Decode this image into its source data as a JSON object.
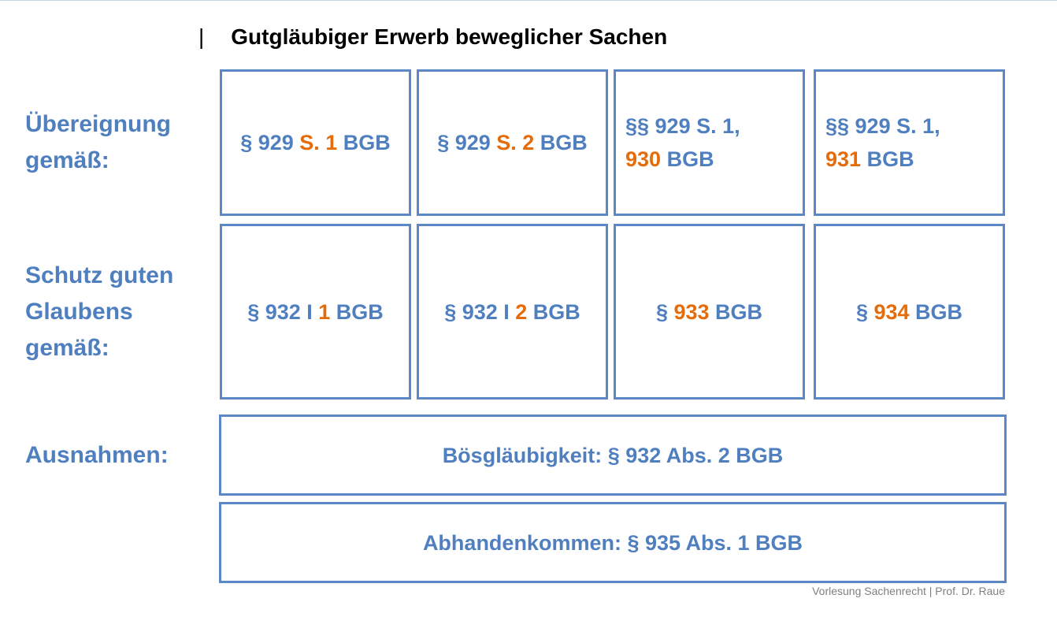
{
  "header": {
    "separator": "|",
    "title": "Gutgläubiger Erwerb beweglicher Sachen"
  },
  "rows": [
    {
      "label": [
        "Übereignung",
        "gemäß:"
      ],
      "boxes": [
        {
          "lines": [
            [
              {
                "text": "§ 929 "
              },
              {
                "text": "S. 1",
                "highlight": true
              },
              {
                "text": " BGB"
              }
            ]
          ]
        },
        {
          "lines": [
            [
              {
                "text": "§ 929 "
              },
              {
                "text": "S. 2",
                "highlight": true
              },
              {
                "text": " BGB"
              }
            ]
          ]
        },
        {
          "lines": [
            [
              {
                "text": "§§ 929 S. 1,"
              }
            ],
            [
              {
                "text": "930",
                "highlight": true
              },
              {
                "text": " BGB"
              }
            ]
          ]
        },
        {
          "lines": [
            [
              {
                "text": "§§ 929 S. 1,"
              }
            ],
            [
              {
                "text": "931",
                "highlight": true
              },
              {
                "text": " BGB"
              }
            ]
          ]
        }
      ]
    },
    {
      "label": [
        "Schutz guten",
        "Glaubens",
        "gemäß:"
      ],
      "boxes": [
        {
          "lines": [
            [
              {
                "text": "§ 932 I "
              },
              {
                "text": "1",
                "highlight": true
              },
              {
                "text": " BGB"
              }
            ]
          ]
        },
        {
          "lines": [
            [
              {
                "text": "§ 932 I "
              },
              {
                "text": "2",
                "highlight": true
              },
              {
                "text": " BGB"
              }
            ]
          ]
        },
        {
          "lines": [
            [
              {
                "text": "§ "
              },
              {
                "text": "933",
                "highlight": true
              },
              {
                "text": " BGB"
              }
            ]
          ]
        },
        {
          "lines": [
            [
              {
                "text": "§ "
              },
              {
                "text": "934",
                "highlight": true
              },
              {
                "text": " BGB"
              }
            ]
          ]
        }
      ]
    },
    {
      "label": [
        "Ausnahmen:"
      ],
      "boxes": [
        {
          "lines": [
            [
              {
                "text": "Bösgläubigkeit: § 932 Abs. 2 BGB"
              }
            ]
          ]
        }
      ]
    },
    {
      "boxes": [
        {
          "lines": [
            [
              {
                "text": "Abhandenkommen: § 935 Abs. 1 BGB"
              }
            ]
          ]
        }
      ]
    }
  ],
  "footer": "Vorlesung Sachenrecht | Prof. Dr. Raue"
}
